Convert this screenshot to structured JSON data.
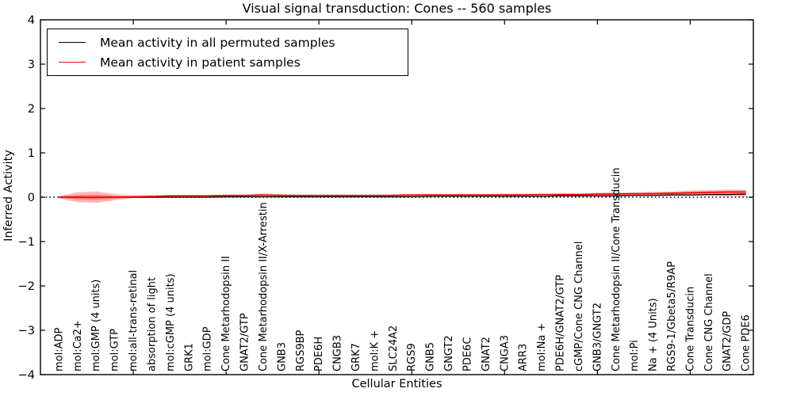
{
  "title": "Visual signal transduction: Cones -- 560 samples",
  "legend": {
    "items": [
      {
        "label": "Mean activity in all permuted samples",
        "color": "#000000"
      },
      {
        "label": "Mean activity in patient samples",
        "color": "#ff0000"
      }
    ]
  },
  "colors": {
    "background": "#ffffff",
    "frame": "#000000",
    "zero_line": "#000000",
    "band_fill": "#ff0000",
    "permuted_line": "#000000",
    "patient_line": "#ff0000"
  },
  "chart_data": {
    "type": "line",
    "title": "Visual signal transduction: Cones -- 560 samples",
    "xlabel": "Cellular Entities",
    "ylabel": "Inferred Activity",
    "ylim": [
      -4,
      4
    ],
    "yticks": [
      -4,
      -3,
      -2,
      -1,
      0,
      1,
      2,
      3,
      4
    ],
    "xtick_indices": [
      4,
      9,
      14,
      19,
      24,
      29,
      34
    ],
    "grid": false,
    "legend_position": "upper left",
    "zero_line": {
      "y": 0,
      "style": "dotted",
      "color": "#000000"
    },
    "categories": [
      "mol:ADP",
      "mol:Ca2+",
      "mol:GMP (4 units)",
      "mol:GTP",
      "mol:all-trans-retinal",
      "absorption of light",
      "mol:cGMP (4 units)",
      "GRK1",
      "mol:GDP",
      "Cone Metarhodopsin II",
      "GNAT2/GTP",
      "Cone Metarhodopsin II/X-Arrestin",
      "GNB3",
      "RGS9BP",
      "PDE6H",
      "CNGB3",
      "GRK7",
      "mol:K +",
      "SLC24A2",
      "RGS9",
      "GNB5",
      "GNGT2",
      "PDE6C",
      "GNAT2",
      "CNGA3",
      "ARR3",
      "mol:Na +",
      "PDE6H/GNAT2/GTP",
      "cGMP/Cone CNG Channel",
      "GNB3/GNGT2",
      "Cone Metarhodopsin II/Cone Transducin",
      "mol:Pi",
      "Na + (4 Units)",
      "RGS9-1/Gbeta5/R9AP",
      "Cone Transducin",
      "Cone CNG Channel",
      "GNAT2/GDP",
      "Cone PDE6"
    ],
    "series": [
      {
        "name": "Mean activity in all permuted samples",
        "color": "#000000",
        "values": [
          0.0,
          0.0,
          0.0,
          0.0,
          0.0,
          0.0,
          0.0,
          0.0,
          0.0,
          0.01,
          0.01,
          0.01,
          0.01,
          0.01,
          0.01,
          0.01,
          0.01,
          0.01,
          0.01,
          0.01,
          0.02,
          0.02,
          0.02,
          0.02,
          0.02,
          0.02,
          0.02,
          0.03,
          0.03,
          0.03,
          0.03,
          0.04,
          0.04,
          0.05,
          0.05,
          0.06,
          0.06,
          0.07
        ]
      },
      {
        "name": "Mean activity in patient samples",
        "color": "#ff0000",
        "values": [
          0.0,
          0.0,
          0.0,
          0.0,
          0.01,
          0.02,
          0.03,
          0.03,
          0.03,
          0.04,
          0.04,
          0.05,
          0.04,
          0.04,
          0.04,
          0.04,
          0.04,
          0.04,
          0.04,
          0.05,
          0.05,
          0.05,
          0.05,
          0.05,
          0.05,
          0.05,
          0.06,
          0.06,
          0.06,
          0.07,
          0.07,
          0.08,
          0.08,
          0.09,
          0.1,
          0.11,
          0.12,
          0.12
        ]
      }
    ],
    "band": {
      "name": "patient sample spread",
      "color": "#ff0000",
      "opacity": 0.28,
      "upper": [
        0.03,
        0.11,
        0.13,
        0.07,
        0.04,
        0.04,
        0.05,
        0.05,
        0.05,
        0.06,
        0.06,
        0.08,
        0.07,
        0.06,
        0.06,
        0.06,
        0.06,
        0.06,
        0.07,
        0.07,
        0.07,
        0.07,
        0.07,
        0.07,
        0.08,
        0.08,
        0.08,
        0.09,
        0.09,
        0.1,
        0.11,
        0.11,
        0.12,
        0.13,
        0.15,
        0.16,
        0.17,
        0.17
      ],
      "lower": [
        -0.03,
        -0.11,
        -0.13,
        -0.07,
        -0.02,
        -0.01,
        0.0,
        0.01,
        0.01,
        0.01,
        0.02,
        0.02,
        0.02,
        0.02,
        0.02,
        0.02,
        0.02,
        0.02,
        0.02,
        0.02,
        0.03,
        0.03,
        0.03,
        0.03,
        0.03,
        0.03,
        0.03,
        0.03,
        0.03,
        0.04,
        0.04,
        0.04,
        0.04,
        0.04,
        0.04,
        0.03,
        0.02,
        0.01
      ]
    }
  }
}
